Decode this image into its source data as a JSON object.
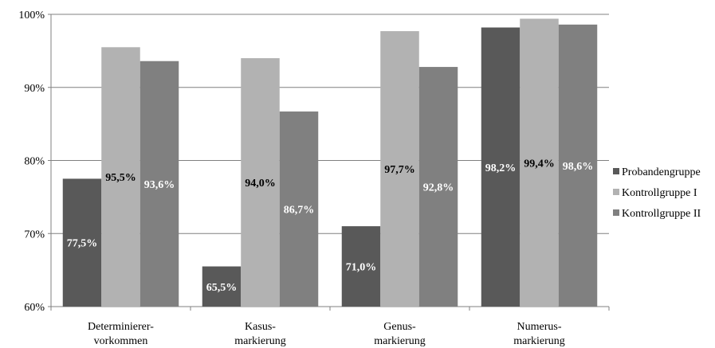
{
  "chart_data": {
    "type": "bar",
    "categories": [
      [
        "Determinierer-",
        "vorkommen"
      ],
      [
        "Kasus-",
        "markierung"
      ],
      [
        "Genus-",
        "markierung"
      ],
      [
        "Numerus-",
        "markierung"
      ]
    ],
    "series": [
      {
        "name": "Probandengruppe",
        "color": "#595959",
        "values": [
          77.5,
          65.5,
          71.0,
          98.2
        ],
        "labels": [
          "77,5%",
          "65,5%",
          "71,0%",
          "98,2%"
        ],
        "label_color": "#ffffff"
      },
      {
        "name": "Kontrollgruppe I",
        "color": "#b2b2b2",
        "values": [
          95.5,
          94.0,
          97.7,
          99.4
        ],
        "labels": [
          "95,5%",
          "94,0%",
          "97,7%",
          "99,4%"
        ],
        "label_color": "#000000"
      },
      {
        "name": "Kontrollgruppe II",
        "color": "#808080",
        "values": [
          93.6,
          86.7,
          92.8,
          98.6
        ],
        "labels": [
          "93,6%",
          "86,7%",
          "92,8%",
          "98,6%"
        ],
        "label_color": "#ffffff"
      }
    ],
    "yticks": [
      60,
      70,
      80,
      90,
      100
    ],
    "ytick_labels": [
      "60%",
      "70%",
      "80%",
      "90%",
      "100%"
    ],
    "ylim": [
      60,
      100
    ],
    "grid": true,
    "legend": "right"
  }
}
